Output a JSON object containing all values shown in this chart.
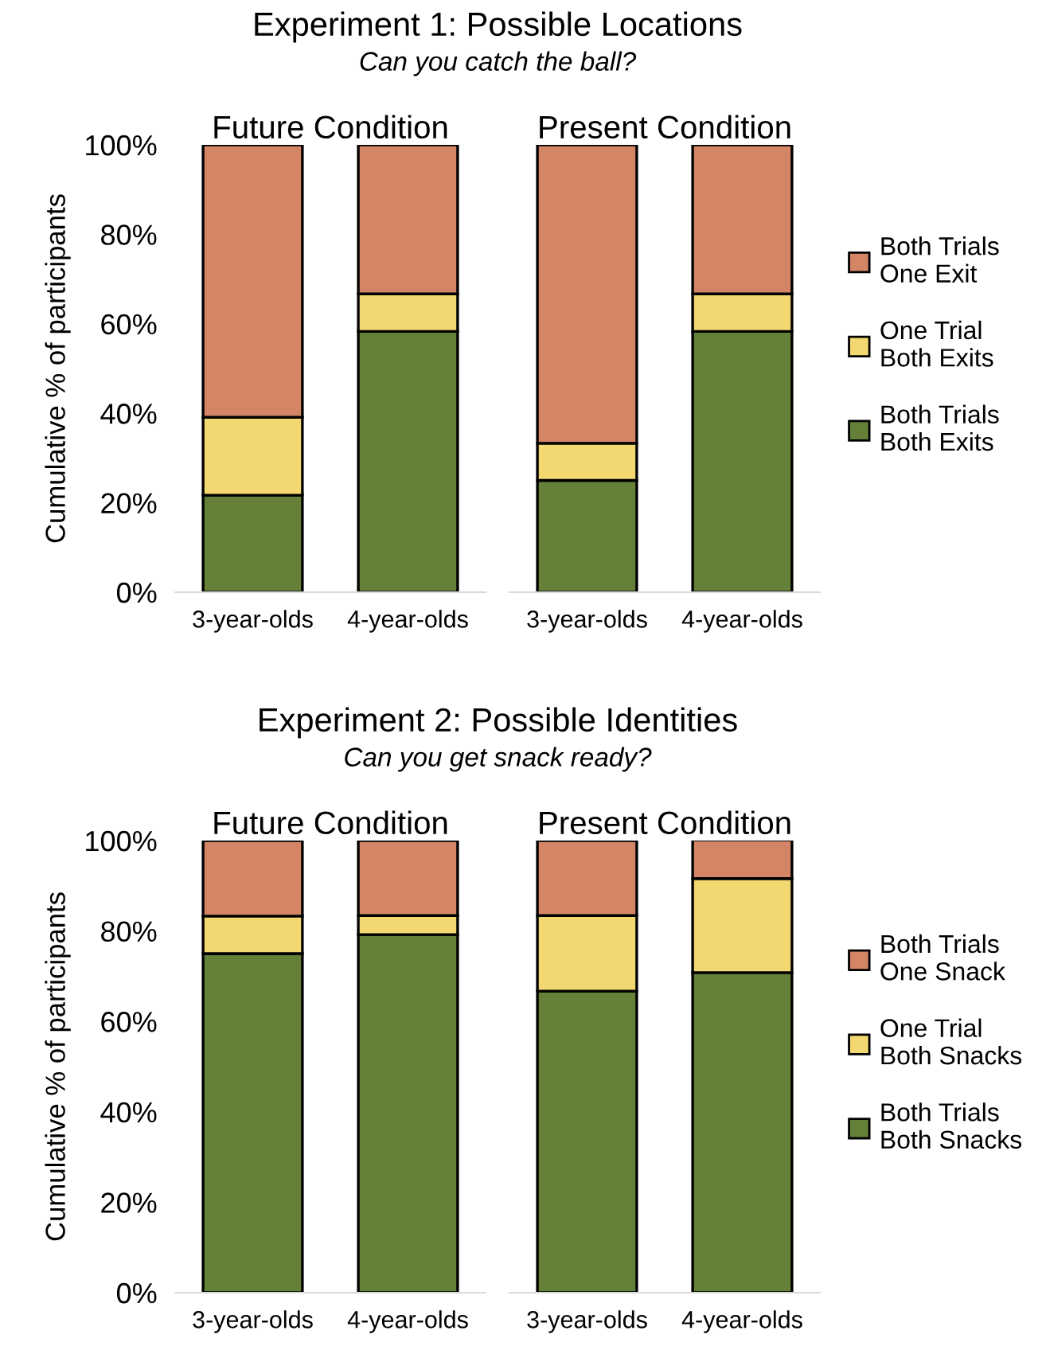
{
  "chart_data": [
    {
      "type": "bar",
      "stacked": true,
      "title": "Future Condition",
      "annotations": [
        "Experiment 1: Possible Locations",
        "Can you catch the ball?"
      ],
      "ylabel": "Cumulative % of participants",
      "categories": [
        "3-year-olds",
        "4-year-olds"
      ],
      "ylim": [
        0,
        100
      ],
      "yticks": [
        {
          "value": 0,
          "label": "0%"
        },
        {
          "value": 20,
          "label": "20%"
        },
        {
          "value": 40,
          "label": "40%"
        },
        {
          "value": 60,
          "label": "60%"
        },
        {
          "value": 80,
          "label": "80%"
        },
        {
          "value": 100,
          "label": "100%"
        }
      ],
      "grid": false,
      "legend": false,
      "series": [
        {
          "color": "#648039",
          "values": [
            21.7,
            58.3
          ]
        },
        {
          "color": "#f3d770",
          "values": [
            17.4,
            8.4
          ]
        },
        {
          "color": "#d38566",
          "values": [
            60.9,
            33.3
          ]
        }
      ]
    },
    {
      "type": "bar",
      "stacked": true,
      "title": "Present Condition",
      "categories": [
        "3-year-olds",
        "4-year-olds"
      ],
      "ylim": [
        0,
        100
      ],
      "tick_labels": "x",
      "grid": false,
      "legend": "right",
      "series": [
        {
          "name": "Both Trials\nBoth Exits",
          "color": "#648039",
          "values": [
            25.0,
            58.3
          ]
        },
        {
          "name": "One Trial\nBoth Exits",
          "color": "#f3d770",
          "values": [
            8.3,
            8.4
          ]
        },
        {
          "name": "Both Trials\nOne Exit",
          "color": "#d38566",
          "values": [
            66.7,
            33.3
          ]
        }
      ]
    },
    {
      "type": "bar",
      "stacked": true,
      "title": "Future Condition",
      "annotations": [
        "Experiment 2: Possible Identities",
        "Can you get snack ready?"
      ],
      "ylabel": "Cumulative % of participants",
      "categories": [
        "3-year-olds",
        "4-year-olds"
      ],
      "ylim": [
        0,
        100
      ],
      "yticks": [
        {
          "value": 0,
          "label": "0%"
        },
        {
          "value": 20,
          "label": "20%"
        },
        {
          "value": 40,
          "label": "40%"
        },
        {
          "value": 60,
          "label": "60%"
        },
        {
          "value": 80,
          "label": "80%"
        },
        {
          "value": 100,
          "label": "100%"
        }
      ],
      "grid": false,
      "legend": false,
      "series": [
        {
          "color": "#648039",
          "values": [
            75.0,
            79.2
          ]
        },
        {
          "color": "#f3d770",
          "values": [
            8.3,
            4.2
          ]
        },
        {
          "color": "#d38566",
          "values": [
            16.7,
            16.6
          ]
        }
      ]
    },
    {
      "type": "bar",
      "stacked": true,
      "title": "Present Condition",
      "categories": [
        "3-year-olds",
        "4-year-olds"
      ],
      "ylim": [
        0,
        100
      ],
      "tick_labels": "x",
      "grid": false,
      "legend": "right",
      "series": [
        {
          "name": "Both Trials\nBoth Snacks",
          "color": "#648039",
          "values": [
            66.7,
            70.8
          ]
        },
        {
          "name": "One Trial\nBoth Snacks",
          "color": "#f3d770",
          "values": [
            16.7,
            20.8
          ]
        },
        {
          "name": "Both Trials\nOne Snack",
          "color": "#d38566",
          "values": [
            16.6,
            8.5
          ]
        }
      ]
    }
  ]
}
